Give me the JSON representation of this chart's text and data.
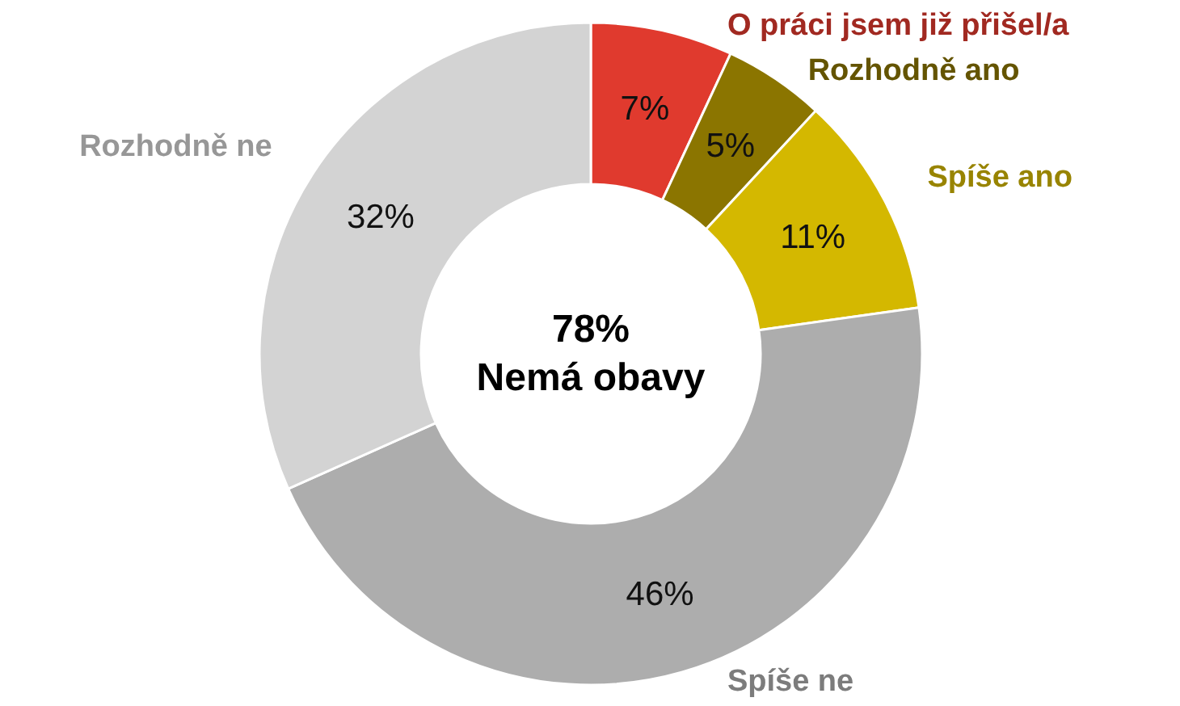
{
  "chart_data": {
    "type": "donut",
    "categories": [
      "O práci jsem již přišel/a",
      "Rozhodně ano",
      "Spíše ano",
      "Spíše ne",
      "Rozhodně ne"
    ],
    "values": [
      7,
      5,
      11,
      46,
      32
    ],
    "colors": [
      "#e03a2e",
      "#8b7500",
      "#d4b800",
      "#adadad",
      "#d3d3d3"
    ],
    "value_labels": [
      "7%",
      "5%",
      "11%",
      "46%",
      "32%"
    ],
    "annotations": [
      "78%",
      "Nemá obavy"
    ]
  }
}
